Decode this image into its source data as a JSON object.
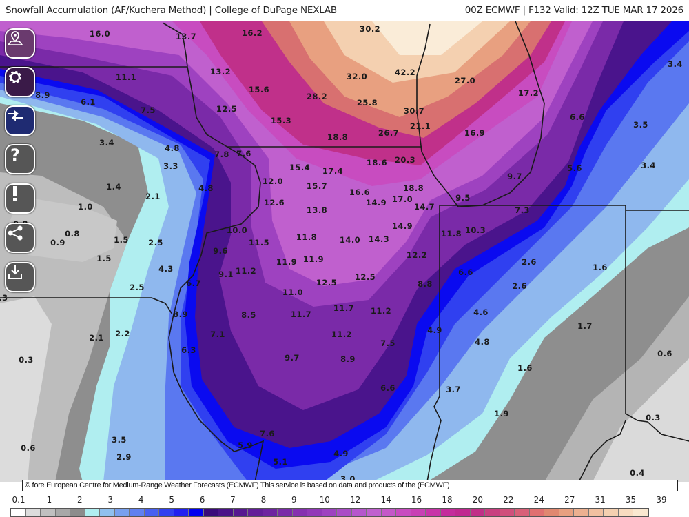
{
  "header": {
    "title": "Snowfall Accumulation (AF/Kuchera Method) | College of DuPage NEXLAB",
    "run_info": "00Z ECMWF | F132 Valid: 12Z TUE MAR 17 2026"
  },
  "toolbar": [
    {
      "name": "location-icon",
      "color": "#6a3a6e"
    },
    {
      "name": "gear-icon",
      "color": "#3a1a48"
    },
    {
      "name": "swap-arrows-icon",
      "color": "#1f2b72"
    },
    {
      "name": "question-icon",
      "color": "#565656"
    },
    {
      "name": "exclamation-icon",
      "color": "#565656"
    },
    {
      "name": "share-icon",
      "color": "#565656"
    },
    {
      "name": "download-icon",
      "color": "#565656"
    }
  ],
  "map": {
    "units": "inches",
    "labels": [
      "16.0",
      "13.7",
      "16.2",
      "30.2",
      "11.1",
      "13.2",
      "15.6",
      "32.0",
      "42.2",
      "27.0",
      "17.2",
      "3.4",
      "8.9",
      "6.1",
      "7.5",
      "12.5",
      "28.2",
      "25.8",
      "30.7",
      "15.3",
      "21.1",
      "16.9",
      "6.6",
      "3.5",
      "18.8",
      "26.7",
      "3.4",
      "4.8",
      "7.8",
      "7.6",
      "18.6",
      "20.3",
      "3.3",
      "15.4",
      "17.4",
      "5.6",
      "3.4",
      "12.0",
      "15.7",
      "9.7",
      "1.4",
      "16.6",
      "18.8",
      "2.1",
      "4.8",
      "12.6",
      "14.9",
      "17.0",
      "9.5",
      "14.7",
      "13.8",
      "7.3",
      "1.0",
      "0.8",
      "14.9",
      "10.0",
      "11.8",
      "10.3",
      "0.9",
      "0.8",
      "1.5",
      "2.5",
      "11.5",
      "11.8",
      "14.0",
      "14.3",
      "1.5",
      "4.3",
      "9.6",
      "11.9",
      "11.9",
      "12.2",
      "2.6",
      "1.6",
      "9.1",
      "11.2",
      "12.5",
      "12.5",
      "6.6",
      "2.5",
      "6.7",
      "8.8",
      "2.6",
      ".3",
      "11.0",
      "8.9",
      "8.5",
      "11.7",
      "11.7",
      "11.2",
      "4.6",
      "1.7",
      "2.1",
      "2.2",
      "7.1",
      "4.9",
      "11.2",
      "7.5",
      "4.8",
      "6.3",
      "0.3",
      "0.6",
      "9.7",
      "8.9",
      "1.6",
      "6.6",
      "3.7",
      "1.9",
      "7.6",
      "0.3",
      "3.5",
      "0.6",
      "5.9",
      "2.9",
      "5.1",
      "4.9",
      "3.0",
      "0.4"
    ]
  },
  "credit": "© fore European Centre for Medium-Range Weather Forecasts (ECMWF)  This service is based on data and products of the (ECMWF)",
  "colorbar": {
    "labels": [
      "0.1",
      "1",
      "2",
      "3",
      "4",
      "5",
      "6",
      "7",
      "8",
      "9",
      "10",
      "12",
      "14",
      "16",
      "18",
      "20",
      "22",
      "24",
      "27",
      "31",
      "35",
      "39"
    ],
    "colors": [
      "#ffffff",
      "#dcdcdc",
      "#c0c0c0",
      "#a8a8a8",
      "#8c8c8c",
      "#b0eef0",
      "#90c0ee",
      "#78a0ee",
      "#6080f0",
      "#4860f0",
      "#3040f0",
      "#2020f0",
      "#0000f0",
      "#3a0a7a",
      "#4a1288",
      "#561890",
      "#621e98",
      "#6e24a0",
      "#7a2aa8",
      "#8630b0",
      "#9238b8",
      "#9e42c0",
      "#aa4cc6",
      "#b656cc",
      "#c060ce",
      "#c458c8",
      "#c84cc0",
      "#c840b4",
      "#c834a8",
      "#c42c9c",
      "#c02890",
      "#c03088",
      "#c84080",
      "#d0507c",
      "#d86078",
      "#e07070",
      "#e08870",
      "#e8a080",
      "#ecb090",
      "#f0c0a0",
      "#f4d0b0",
      "#f8dcc0",
      "#fae8d0"
    ]
  }
}
